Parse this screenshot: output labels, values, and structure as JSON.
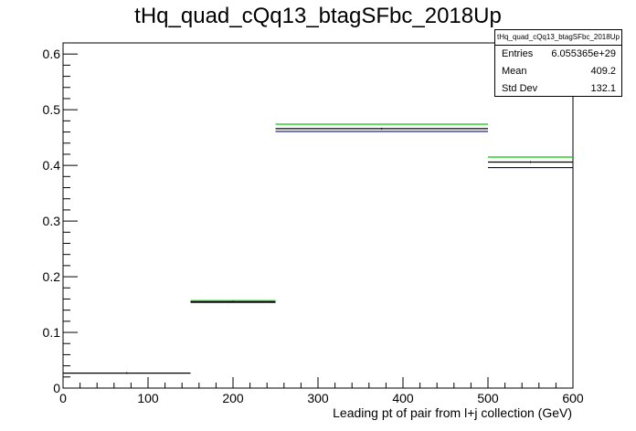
{
  "chart_data": {
    "type": "histogram",
    "title": "tHq_quad_cQq13_btagSFbc_2018Up",
    "xlabel": "Leading pt of pair from l+j collection (GeV)",
    "ylabel": "",
    "xlim": [
      0,
      600
    ],
    "ylim": [
      0,
      0.62
    ],
    "x_ticks": [
      "0",
      "100",
      "200",
      "300",
      "400",
      "500",
      "600"
    ],
    "y_ticks": [
      "0",
      "0.1",
      "0.2",
      "0.3",
      "0.4",
      "0.5",
      "0.6"
    ],
    "bins": [
      {
        "low": 0,
        "high": 150,
        "value": 0.027,
        "up": 0.027,
        "down": 0.027
      },
      {
        "low": 150,
        "high": 250,
        "value": 0.155,
        "up": 0.157,
        "down": 0.154
      },
      {
        "low": 250,
        "high": 500,
        "value": 0.466,
        "up": 0.474,
        "down": 0.461
      },
      {
        "low": 500,
        "high": 600,
        "value": 0.406,
        "up": 0.415,
        "down": 0.396
      }
    ],
    "series_colors": {
      "nominal": "#000000",
      "up": "#00cc00",
      "down": "#000099"
    },
    "grid": false
  },
  "stats_box": {
    "name": "tHq_quad_cQq13_btagSFbc_2018Up",
    "entries_label": "Entries",
    "entries_value": "6.055365e+29",
    "mean_label": "Mean",
    "mean_value": "409.2",
    "stddev_label": "Std Dev",
    "stddev_value": "132.1"
  }
}
